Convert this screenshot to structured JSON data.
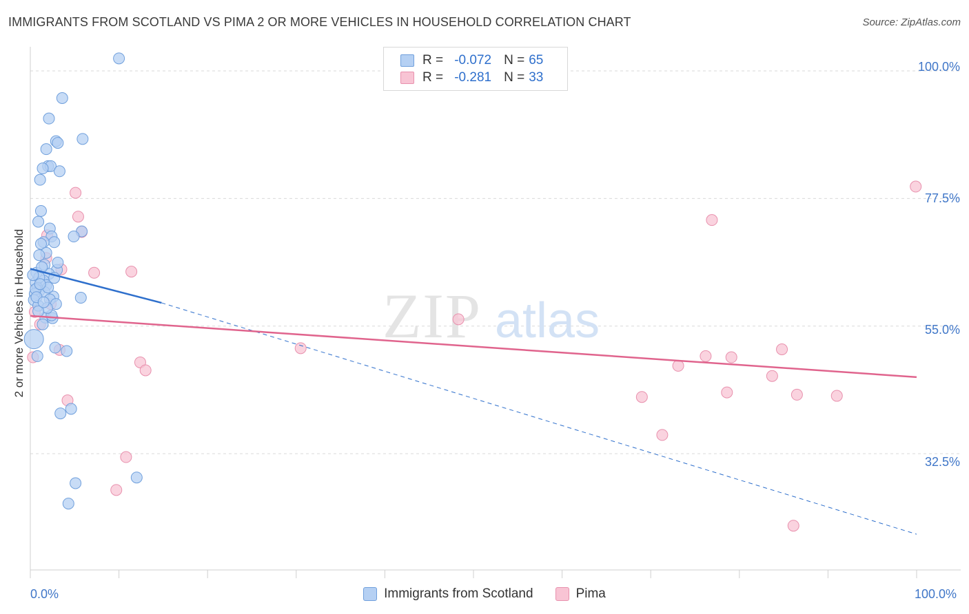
{
  "title": "IMMIGRANTS FROM SCOTLAND VS PIMA 2 OR MORE VEHICLES IN HOUSEHOLD CORRELATION CHART",
  "source": "Source: ZipAtlas.com",
  "watermark": {
    "zip": "ZIP",
    "atlas": "atlas"
  },
  "legend": {
    "rows": [
      {
        "r_label": "R =",
        "r_value": "-0.072",
        "n_label": "N =",
        "n_value": "65"
      },
      {
        "r_label": "R =",
        "r_value": "-0.281",
        "n_label": "N =",
        "n_value": "33"
      }
    ]
  },
  "colors": {
    "blue_fill": "#b5d0f3",
    "blue_stroke": "#6f9fdc",
    "blue_line": "#2e6fcc",
    "pink_fill": "#f8c4d4",
    "pink_stroke": "#e890ad",
    "pink_line": "#e0648d",
    "grid": "#d9d9d9",
    "axis_text": "#3f76c8"
  },
  "chart_data": {
    "type": "scatter",
    "title": "IMMIGRANTS FROM SCOTLAND VS PIMA 2 OR MORE VEHICLES IN HOUSEHOLD CORRELATION CHART",
    "xlabel": "",
    "ylabel": "2 or more Vehicles in Household",
    "xlim": [
      0,
      100
    ],
    "ylim": [
      12,
      104
    ],
    "x_tick_labels": [
      "0.0%",
      "100.0%"
    ],
    "y_ticks": [
      32.5,
      55.0,
      77.5,
      100.0
    ],
    "y_tick_labels": [
      "32.5%",
      "55.0%",
      "77.5%",
      "100.0%"
    ],
    "grid": true,
    "legend_position": "bottom",
    "series": [
      {
        "name": "Immigrants from Scotland",
        "r": -0.072,
        "n": 65,
        "trend": {
          "x": [
            0,
            14.8
          ],
          "y": [
            65.1,
            59.1
          ],
          "dashed_to": [
            100,
            18.3
          ]
        },
        "points": [
          [
            10,
            102.2
          ],
          [
            3.6,
            95.2
          ],
          [
            2.1,
            91.6
          ],
          [
            5.9,
            88.0
          ],
          [
            2.9,
            87.6
          ],
          [
            3.1,
            87.3
          ],
          [
            1.8,
            86.2
          ],
          [
            2.0,
            83.2
          ],
          [
            2.3,
            83.2
          ],
          [
            1.4,
            82.8
          ],
          [
            3.3,
            82.3
          ],
          [
            1.1,
            80.8
          ],
          [
            1.2,
            75.3
          ],
          [
            0.9,
            73.4
          ],
          [
            2.2,
            72.2
          ],
          [
            5.8,
            71.7
          ],
          [
            4.9,
            70.8
          ],
          [
            2.4,
            70.8
          ],
          [
            2.7,
            69.8
          ],
          [
            1.5,
            69.8
          ],
          [
            1.2,
            69.5
          ],
          [
            1.8,
            67.9
          ],
          [
            1.0,
            67.5
          ],
          [
            1.6,
            65.8
          ],
          [
            3.0,
            64.9
          ],
          [
            0.7,
            64.4
          ],
          [
            2.1,
            64.2
          ],
          [
            2.7,
            63.5
          ],
          [
            1.5,
            63.0
          ],
          [
            0.6,
            62.7
          ],
          [
            1.8,
            62.2
          ],
          [
            0.8,
            61.7
          ],
          [
            1.0,
            61.2
          ],
          [
            0.5,
            60.7
          ],
          [
            2.6,
            60.2
          ],
          [
            5.7,
            60.0
          ],
          [
            0.4,
            59.6
          ],
          [
            1.7,
            56.5
          ],
          [
            2.5,
            56.4
          ],
          [
            1.4,
            55.3
          ],
          [
            0.4,
            52.7
          ],
          [
            2.8,
            51.2
          ],
          [
            4.1,
            50.6
          ],
          [
            0.8,
            49.7
          ],
          [
            4.6,
            40.4
          ],
          [
            3.4,
            39.6
          ],
          [
            12.0,
            28.3
          ],
          [
            5.1,
            27.3
          ],
          [
            4.3,
            23.7
          ],
          [
            0.9,
            58.6
          ],
          [
            1.6,
            61.0
          ],
          [
            2.2,
            59.7
          ],
          [
            1.0,
            63.6
          ],
          [
            0.6,
            61.5
          ],
          [
            2.9,
            58.9
          ],
          [
            1.3,
            65.4
          ],
          [
            0.7,
            60.1
          ],
          [
            2.0,
            61.8
          ],
          [
            1.1,
            62.4
          ],
          [
            0.3,
            64.0
          ],
          [
            2.4,
            56.9
          ],
          [
            1.9,
            58.2
          ],
          [
            3.1,
            66.2
          ],
          [
            0.9,
            57.6
          ],
          [
            1.5,
            59.2
          ]
        ]
      },
      {
        "name": "Pima",
        "r": -0.281,
        "n": 33,
        "trend": {
          "x": [
            0,
            100
          ],
          "y": [
            56.8,
            46.0
          ]
        },
        "points": [
          [
            99.9,
            79.6
          ],
          [
            5.1,
            78.5
          ],
          [
            5.4,
            74.3
          ],
          [
            76.9,
            73.7
          ],
          [
            5.8,
            71.6
          ],
          [
            1.9,
            71.0
          ],
          [
            1.8,
            67.0
          ],
          [
            3.5,
            65.0
          ],
          [
            7.2,
            64.4
          ],
          [
            11.4,
            64.6
          ],
          [
            2.3,
            58.9
          ],
          [
            0.5,
            57.5
          ],
          [
            48.3,
            56.2
          ],
          [
            1.1,
            55.3
          ],
          [
            30.5,
            51.1
          ],
          [
            3.3,
            50.8
          ],
          [
            84.8,
            50.9
          ],
          [
            76.2,
            49.7
          ],
          [
            79.1,
            49.5
          ],
          [
            73.1,
            48.0
          ],
          [
            12.4,
            48.6
          ],
          [
            13.0,
            47.2
          ],
          [
            83.7,
            46.2
          ],
          [
            0.3,
            49.5
          ],
          [
            78.6,
            43.3
          ],
          [
            86.5,
            42.9
          ],
          [
            91.0,
            42.7
          ],
          [
            69.0,
            42.5
          ],
          [
            4.2,
            41.9
          ],
          [
            71.3,
            35.8
          ],
          [
            10.8,
            31.9
          ],
          [
            9.7,
            26.1
          ],
          [
            86.1,
            19.8
          ]
        ]
      }
    ]
  }
}
